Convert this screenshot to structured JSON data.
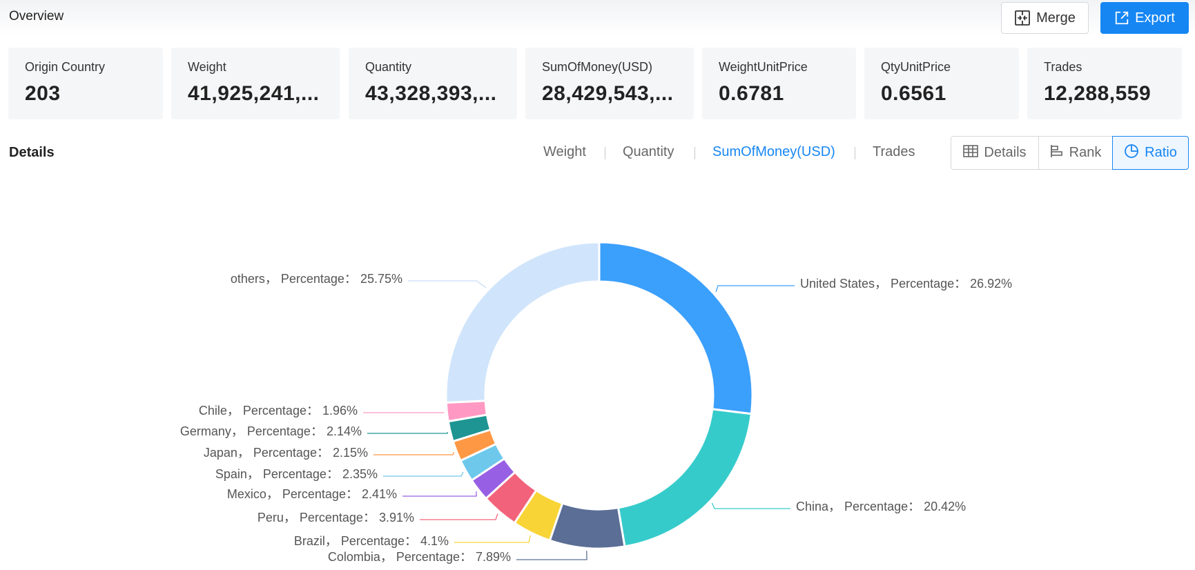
{
  "header": {
    "title": "Overview",
    "merge_label": "Merge",
    "export_label": "Export"
  },
  "cards": [
    {
      "label": "Origin Country",
      "value": "203"
    },
    {
      "label": "Weight",
      "value": "41,925,241,..."
    },
    {
      "label": "Quantity",
      "value": "43,328,393,..."
    },
    {
      "label": "SumOfMoney(USD)",
      "value": "28,429,543,..."
    },
    {
      "label": "WeightUnitPrice",
      "value": "0.6781"
    },
    {
      "label": "QtyUnitPrice",
      "value": "0.6561"
    },
    {
      "label": "Trades",
      "value": "12,288,559"
    }
  ],
  "details": {
    "title": "Details",
    "tabs": [
      "Weight",
      "Quantity",
      "SumOfMoney(USD)",
      "Trades"
    ],
    "active_tab": "SumOfMoney(USD)",
    "views": [
      {
        "label": "Details",
        "icon": "table-icon"
      },
      {
        "label": "Rank",
        "icon": "bar-rank-icon"
      },
      {
        "label": "Ratio",
        "icon": "pie-icon"
      }
    ],
    "active_view": "Ratio"
  },
  "chart_data": {
    "type": "pie",
    "donut": true,
    "label_template": "{name}， Percentage： {value}%",
    "slices": [
      {
        "name": "United States",
        "value": 26.92,
        "color": "#3b9ffc"
      },
      {
        "name": "China",
        "value": 20.42,
        "color": "#36cbcb"
      },
      {
        "name": "Colombia",
        "value": 7.89,
        "color": "#5b6e96"
      },
      {
        "name": "Brazil",
        "value": 4.1,
        "color": "#f9d436"
      },
      {
        "name": "Peru",
        "value": 3.91,
        "color": "#f2637b"
      },
      {
        "name": "Mexico",
        "value": 2.41,
        "color": "#975fe4"
      },
      {
        "name": "Spain",
        "value": 2.35,
        "color": "#6dc8ec"
      },
      {
        "name": "Japan",
        "value": 2.15,
        "color": "#ff9845"
      },
      {
        "name": "Germany",
        "value": 2.14,
        "color": "#1e9493"
      },
      {
        "name": "Chile",
        "value": 1.96,
        "color": "#ff99c3"
      },
      {
        "name": "others",
        "value": 25.75,
        "color": "#d0e5fb"
      }
    ]
  }
}
